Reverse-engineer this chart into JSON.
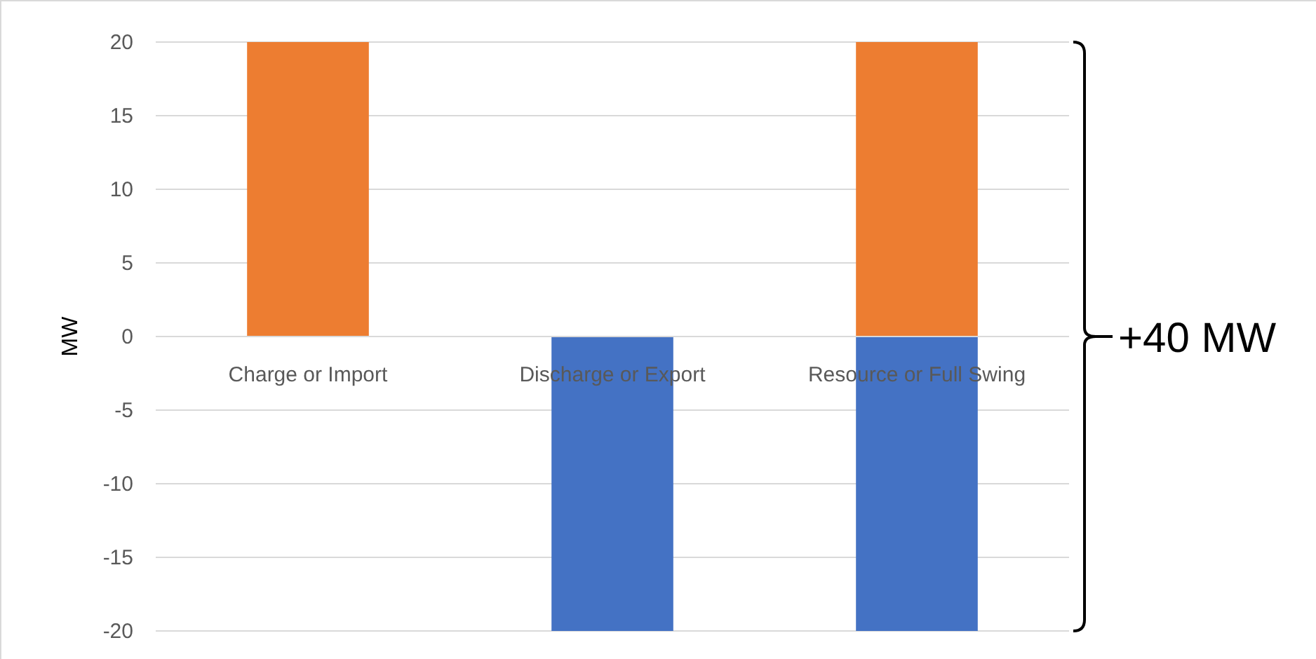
{
  "chart_data": {
    "type": "bar",
    "ylabel": "MW",
    "categories": [
      "Charge or Import",
      "Discharge or Export",
      "Resource or Full Swing"
    ],
    "stacked": true,
    "series": [
      {
        "color": "#ed7d31",
        "values": [
          20,
          null,
          20
        ]
      },
      {
        "color": "#4472c4",
        "values": [
          null,
          -20,
          -20
        ]
      }
    ],
    "ylim": [
      -20,
      20
    ],
    "yticks": [
      -20,
      -15,
      -10,
      -5,
      0,
      5,
      10,
      15,
      20
    ],
    "grid": "y",
    "annotations": [
      "+40 MW"
    ]
  }
}
